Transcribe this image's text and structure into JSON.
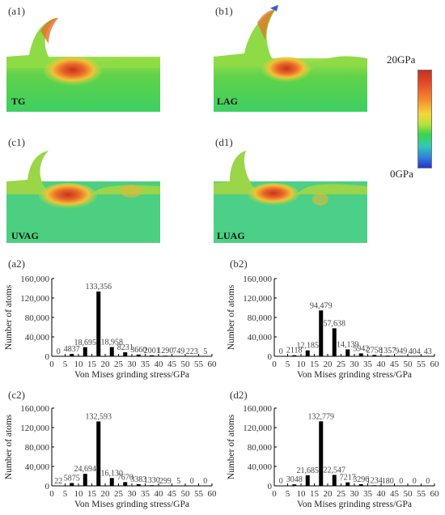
{
  "panels_top": [
    {
      "tag": "(a1)",
      "label": "TG"
    },
    {
      "tag": "(b1)",
      "label": "LAG"
    },
    {
      "tag": "(c1)",
      "label": "UVAG"
    },
    {
      "tag": "(d1)",
      "label": "LUAG"
    }
  ],
  "colorbar": {
    "max_label": "20GPa",
    "min_label": "0GPa"
  },
  "chart_data": [
    {
      "tag": "(a2)",
      "type": "bar",
      "xlabel": "Von Mises grinding stress/GPa",
      "ylabel": "Number of atoms",
      "xlim": [
        0,
        60
      ],
      "ylim": [
        0,
        160000
      ],
      "xticks": [
        "0",
        "5",
        "10",
        "15",
        "20",
        "25",
        "30",
        "35",
        "40",
        "45",
        "50",
        "55",
        "60"
      ],
      "yticks": [
        "0",
        "40,000",
        "80,000",
        "120,000",
        "160,000"
      ],
      "x": [
        2.5,
        7.5,
        12.5,
        17.5,
        22.5,
        27.5,
        32.5,
        37.5,
        42.5,
        47.5,
        52.5,
        57.5
      ],
      "values": [
        0,
        4837,
        18695,
        133356,
        18958,
        8231,
        3660,
        2001,
        1290,
        749,
        223,
        5
      ],
      "labels": [
        "0",
        "4837",
        "18,695",
        "133,356",
        "18,958",
        "8231",
        "3660",
        "2001",
        "1290",
        "749",
        "223",
        "5"
      ]
    },
    {
      "tag": "(b2)",
      "type": "bar",
      "xlabel": "Von Mises grinding stress/GPa",
      "ylabel": "Number of atoms",
      "xlim": [
        0,
        60
      ],
      "ylim": [
        0,
        160000
      ],
      "xticks": [
        "0",
        "5",
        "10",
        "15",
        "20",
        "25",
        "30",
        "35",
        "40",
        "45",
        "50",
        "55",
        "60"
      ],
      "yticks": [
        "0",
        "40,000",
        "80,000",
        "120,000",
        "160,000"
      ],
      "x": [
        2.5,
        7.5,
        12.5,
        17.5,
        22.5,
        27.5,
        32.5,
        37.5,
        42.5,
        47.5,
        52.5,
        57.5
      ],
      "values": [
        0,
        2118,
        12185,
        94479,
        57638,
        14139,
        5942,
        2758,
        1357,
        949,
        404,
        43
      ],
      "labels": [
        "0",
        "2118",
        "12,185",
        "94,479",
        "57,638",
        "14,139",
        "5942",
        "2758",
        "1357",
        "949",
        "404",
        "43"
      ]
    },
    {
      "tag": "(c2)",
      "type": "bar",
      "xlabel": "Von Mises grinding stress/GPa",
      "ylabel": "Number of atoms",
      "xlim": [
        0,
        60
      ],
      "ylim": [
        0,
        160000
      ],
      "xticks": [
        "0",
        "5",
        "10",
        "15",
        "20",
        "25",
        "30",
        "35",
        "40",
        "45",
        "50",
        "55",
        "60"
      ],
      "yticks": [
        "0",
        "40,000",
        "80,000",
        "120,000",
        "160,000"
      ],
      "x": [
        2.5,
        7.5,
        12.5,
        17.5,
        22.5,
        27.5,
        32.5,
        37.5,
        42.5,
        47.5,
        52.5,
        57.5
      ],
      "values": [
        22,
        5875,
        24694,
        132593,
        16130,
        7670,
        3383,
        1330,
        299,
        5,
        0,
        0
      ],
      "labels": [
        "22",
        "5875",
        "24,694",
        "132,593",
        "16,130",
        "7670",
        "3383",
        "1330",
        "299",
        "5",
        "0",
        "0"
      ]
    },
    {
      "tag": "(d2)",
      "type": "bar",
      "xlabel": "Von Mises grinding stress/GPa",
      "ylabel": "Number of atoms",
      "xlim": [
        0,
        60
      ],
      "ylim": [
        0,
        160000
      ],
      "xticks": [
        "0",
        "5",
        "10",
        "15",
        "20",
        "25",
        "30",
        "35",
        "40",
        "45",
        "50",
        "55",
        "60"
      ],
      "yticks": [
        "0",
        "40,000",
        "80,000",
        "120,000",
        "160,000"
      ],
      "x": [
        2.5,
        7.5,
        12.5,
        17.5,
        22.5,
        27.5,
        32.5,
        37.5,
        42.5,
        47.5,
        52.5,
        57.5
      ],
      "values": [
        0,
        3048,
        21685,
        132779,
        22547,
        7217,
        3296,
        1234,
        180,
        0,
        0,
        0
      ],
      "labels": [
        "0",
        "3048",
        "21,685",
        "132,779",
        "22,547",
        "7217",
        "3296",
        "1234",
        "180",
        "0",
        "0",
        "0"
      ]
    }
  ]
}
